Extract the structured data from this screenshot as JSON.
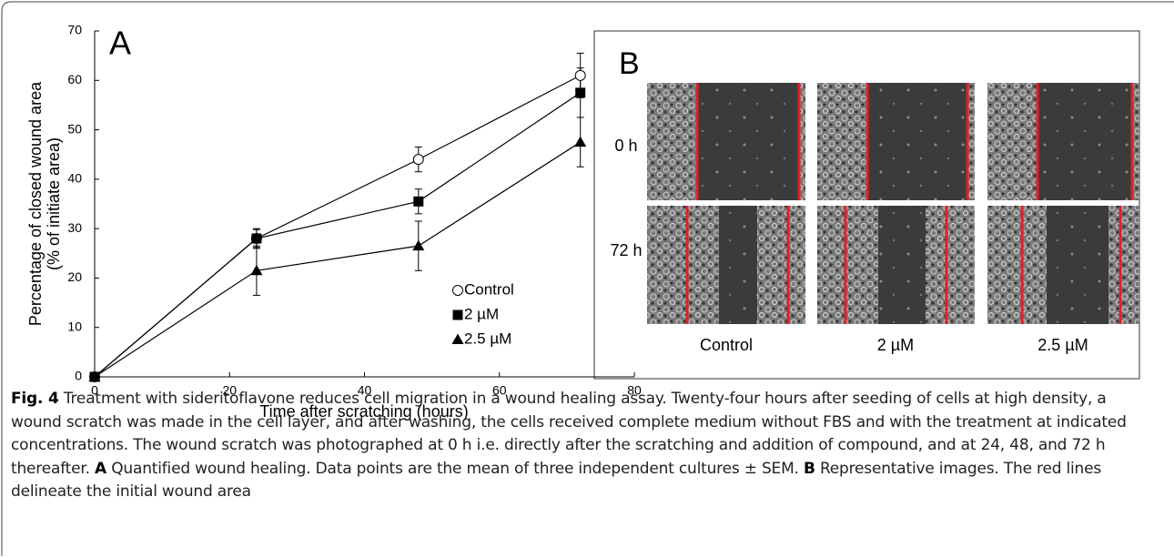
{
  "chart_data": {
    "type": "line",
    "panel_label": "A",
    "xlabel": "Time after scratching (hours)",
    "ylabel": [
      "Percentage of  closed wound area",
      "(% of initiate area)"
    ],
    "x": [
      0,
      24,
      48,
      72
    ],
    "series": [
      {
        "name": "Control",
        "color": "#000000",
        "marker": "open-circle",
        "values": [
          0,
          28,
          44,
          61
        ],
        "errors": [
          0,
          2,
          2.5,
          4.5
        ]
      },
      {
        "name": "2 µM",
        "color": "#000000",
        "marker": "square",
        "values": [
          0,
          28,
          35.5,
          57.5
        ],
        "errors": [
          0,
          1.8,
          2.5,
          5
        ]
      },
      {
        "name": "2.5 µM",
        "color": "#000000",
        "marker": "triangle",
        "values": [
          0,
          21.5,
          26.5,
          47.5
        ],
        "errors": [
          0,
          5,
          5,
          5
        ]
      }
    ],
    "xlim": [
      0,
      80
    ],
    "xticks": [
      0,
      20,
      40,
      60,
      80
    ],
    "ylim": [
      0,
      70
    ],
    "yticks": [
      0,
      10,
      20,
      30,
      40,
      50,
      60,
      70
    ],
    "legend": "lower right",
    "grid": false
  },
  "panel_b": {
    "label": "B",
    "rows": [
      "0 h",
      "72 h"
    ],
    "columns": [
      "Control",
      "2 µM",
      "2.5 µM"
    ]
  },
  "caption": {
    "figure_label": "Fig. 4",
    "text_1": " Treatment with sideritoflavone reduces cell migration in a wound healing assay. Twenty-four hours after seeding of cells at high density, a wound scratch was made in the cell layer, and after washing, the cells received complete medium without FBS and with the treatment at indicated concentrations. The wound scratch was photographed at 0 h i.e. directly after the scratching and addition of compound, and at 24, 48, and 72 h thereafter. ",
    "panel_a": "A",
    "text_2": " Quantified wound healing. Data points are the mean of three independent cultures ± SEM. ",
    "panel_b": "B",
    "text_3": " Representative images. The red lines delineate the initial wound area"
  }
}
